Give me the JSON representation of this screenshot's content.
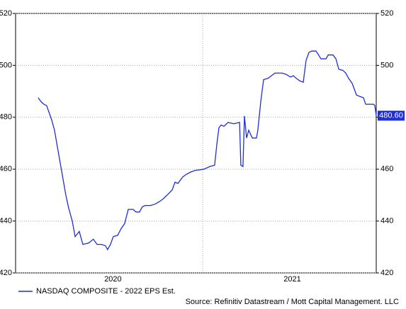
{
  "chart_data": {
    "type": "line",
    "x": [
      2020.083,
      2020.099,
      2020.115,
      2020.13,
      2020.158,
      2020.174,
      2020.194,
      2020.217,
      2020.237,
      2020.253,
      2020.273,
      2020.289,
      2020.312,
      2020.332,
      2020.364,
      2020.391,
      2020.411,
      2020.435,
      2020.458,
      2020.47,
      2020.486,
      2020.502,
      2020.526,
      2020.545,
      2020.565,
      2020.585,
      2020.613,
      2020.628,
      2020.648,
      2020.664,
      2020.68,
      2020.708,
      2020.735,
      2020.759,
      2020.779,
      2020.802,
      2020.83,
      2020.846,
      2020.862,
      2020.889,
      2020.909,
      2020.937,
      2020.96,
      2021.008,
      2021.04,
      2021.067,
      2021.079,
      2021.091,
      2021.103,
      2021.119,
      2021.142,
      2021.174,
      2021.206,
      2021.213,
      2021.225,
      2021.233,
      2021.245,
      2021.257,
      2021.277,
      2021.3,
      2021.308,
      2021.324,
      2021.34,
      2021.364,
      2021.403,
      2021.443,
      2021.466,
      2021.49,
      2021.506,
      2021.522,
      2021.542,
      2021.561,
      2021.577,
      2021.593,
      2021.609,
      2021.632,
      2021.66,
      2021.688,
      2021.7,
      2021.727,
      2021.743,
      2021.759,
      2021.783,
      2021.798,
      2021.814,
      2021.834,
      2021.858,
      2021.877,
      2021.897,
      2021.909,
      2021.929,
      2021.953,
      2021.96,
      2021.968
    ],
    "series": [
      {
        "name": "NASDAQ COMPOSITE - 2022 EPS Est.",
        "color": "#1f2fd8",
        "values": [
          487.5,
          486,
          485,
          484.5,
          479,
          475,
          467,
          458,
          450,
          445,
          440,
          434,
          436,
          431,
          431.5,
          433,
          431,
          431,
          430.5,
          429,
          431,
          434,
          434.5,
          437,
          439,
          444.5,
          444.5,
          443.5,
          443.5,
          445.5,
          446,
          446,
          446.5,
          447.5,
          448.5,
          450,
          452,
          455,
          454.5,
          457,
          458,
          459,
          459.5,
          460,
          461,
          461.5,
          469.5,
          476,
          477,
          476.5,
          478,
          477.5,
          478,
          461.5,
          461,
          480.5,
          472,
          475,
          472,
          472,
          475,
          486,
          494.5,
          495,
          497,
          497,
          496.5,
          495.5,
          496,
          495,
          494,
          493.5,
          502,
          505,
          505.5,
          505.5,
          502.5,
          502.5,
          504,
          504,
          502.5,
          498.5,
          498,
          497,
          495,
          493,
          488.5,
          488,
          487.5,
          485,
          485,
          485,
          484.5,
          480.6
        ],
        "value_labels": [
          null,
          null,
          null,
          null,
          null,
          null,
          null,
          null,
          null,
          null,
          null,
          null,
          null,
          null,
          null,
          null,
          null,
          null,
          null,
          null,
          null,
          null,
          null,
          null,
          null,
          null,
          null,
          null,
          null,
          null,
          null,
          null,
          null,
          null,
          null,
          null,
          null,
          null,
          null,
          null,
          null,
          null,
          null,
          null,
          null,
          null,
          null,
          null,
          null,
          null,
          null,
          null,
          null,
          null,
          null,
          null,
          null,
          null,
          null,
          null,
          null,
          null,
          null,
          null,
          null,
          null,
          null,
          null,
          null,
          null,
          null,
          null,
          null,
          null,
          null,
          null,
          null,
          null,
          null,
          null,
          null,
          null,
          null,
          null,
          null,
          null,
          null,
          null,
          null,
          null,
          null,
          null,
          null,
          "480.60"
        ]
      }
    ],
    "xlim": [
      2019.957,
      2021.968
    ],
    "xticks": [
      {
        "value": 2020.5,
        "label": "2020"
      },
      {
        "value": 2021.5,
        "label": "2021"
      }
    ],
    "xgrid_lines": [
      2021
    ],
    "ylim": [
      420,
      520
    ],
    "yticks": [
      420,
      440,
      460,
      480,
      500,
      520
    ],
    "y2lim": [
      420,
      520
    ],
    "y2ticks": [
      420,
      440,
      460,
      480,
      500,
      520
    ],
    "grid": true,
    "source": "Source: Refinitiv Datastream / Mott Capital Management. LLC"
  }
}
